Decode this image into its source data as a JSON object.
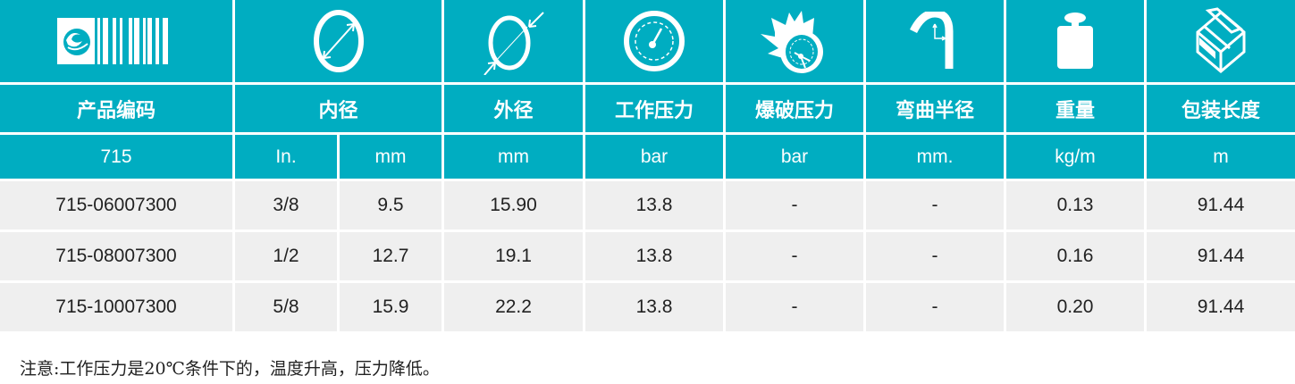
{
  "colors": {
    "header_bg": "#00adc1",
    "row_bg": "#efefef"
  },
  "icons": [
    "barcode-logo-icon",
    "inner-diameter-icon",
    "outer-diameter-icon",
    "pressure-gauge-icon",
    "burst-pressure-icon",
    "bend-radius-icon",
    "weight-icon",
    "package-box-icon"
  ],
  "headers": [
    "产品编码",
    "内径",
    "外径",
    "工作压力",
    "爆破压力",
    "弯曲半径",
    "重量",
    "包装长度"
  ],
  "units": [
    "715",
    "In.",
    "mm",
    "mm",
    "bar",
    "bar",
    "mm.",
    "kg/m",
    "m"
  ],
  "rows": [
    [
      "715-06007300",
      "3/8",
      "9.5",
      "15.90",
      "13.8",
      "-",
      "-",
      "0.13",
      "91.44"
    ],
    [
      "715-08007300",
      "1/2",
      "12.7",
      "19.1",
      "13.8",
      "-",
      "-",
      "0.16",
      "91.44"
    ],
    [
      "715-10007300",
      "5/8",
      "15.9",
      "22.2",
      "13.8",
      "-",
      "-",
      "0.20",
      "91.44"
    ]
  ],
  "note": "注意:工作压力是20℃条件下的，温度升高，压力降低。"
}
